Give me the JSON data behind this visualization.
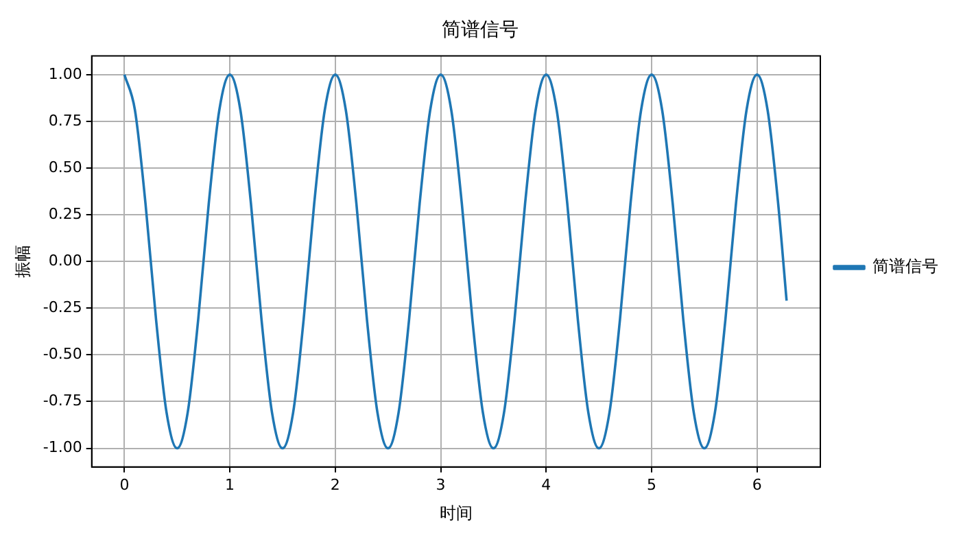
{
  "chart_data": {
    "type": "line",
    "title": "简谱信号",
    "xlabel": "时间",
    "ylabel": "振幅",
    "x": [
      0,
      0.1,
      0.2,
      0.3,
      0.4,
      0.5,
      0.6,
      0.7,
      0.8,
      0.9,
      1,
      1.1,
      1.2,
      1.3,
      1.4,
      1.5,
      1.6,
      1.7,
      1.8,
      1.9,
      2,
      2.1,
      2.2,
      2.3,
      2.4,
      2.5,
      2.6,
      2.7,
      2.8,
      2.9,
      3,
      3.1,
      3.2,
      3.3,
      3.4,
      3.5,
      3.6,
      3.7,
      3.8,
      3.9,
      4,
      4.1,
      4.2,
      4.3,
      4.4,
      4.5,
      4.6,
      4.7,
      4.8,
      4.9,
      5,
      5.1,
      5.2,
      5.3,
      5.4,
      5.5,
      5.6,
      5.7,
      5.8,
      5.9,
      6,
      6.1,
      6.2,
      6.28
    ],
    "series": [
      {
        "name": "简谱信号",
        "color": "#1f77b4",
        "values": [
          1,
          0.81,
          0.31,
          -0.31,
          -0.81,
          -1,
          -0.81,
          -0.31,
          0.31,
          0.81,
          1,
          0.81,
          0.31,
          -0.31,
          -0.81,
          -1,
          -0.81,
          -0.31,
          0.31,
          0.81,
          1,
          0.81,
          0.31,
          -0.31,
          -0.81,
          -1,
          -0.81,
          -0.31,
          0.31,
          0.81,
          1,
          0.81,
          0.31,
          -0.31,
          -0.81,
          -1,
          -0.81,
          -0.31,
          0.31,
          0.81,
          1,
          0.81,
          0.31,
          -0.31,
          -0.81,
          -1,
          -0.81,
          -0.31,
          0.31,
          0.81,
          1,
          0.81,
          0.31,
          -0.31,
          -0.81,
          -1,
          -0.81,
          -0.31,
          0.31,
          0.81,
          1,
          0.81,
          0.31,
          -0.21
        ]
      }
    ],
    "xlim": [
      -0.31,
      6.6
    ],
    "xticks": [
      0,
      1,
      2,
      3,
      4,
      5,
      6
    ],
    "ylim": [
      -1.1,
      1.1
    ],
    "yticks": [
      {
        "value": -1,
        "label": "-1.00"
      },
      {
        "value": -0.75,
        "label": "-0.75"
      },
      {
        "value": -0.5,
        "label": "-0.50"
      },
      {
        "value": -0.25,
        "label": "-0.25"
      },
      {
        "value": 0,
        "label": "0.00"
      },
      {
        "value": 0.25,
        "label": "0.25"
      },
      {
        "value": 0.5,
        "label": "0.50"
      },
      {
        "value": 0.75,
        "label": "0.75"
      },
      {
        "value": 1,
        "label": "1.00"
      }
    ],
    "grid": true,
    "legend": "right",
    "marker": "none",
    "line_style": "solid"
  }
}
